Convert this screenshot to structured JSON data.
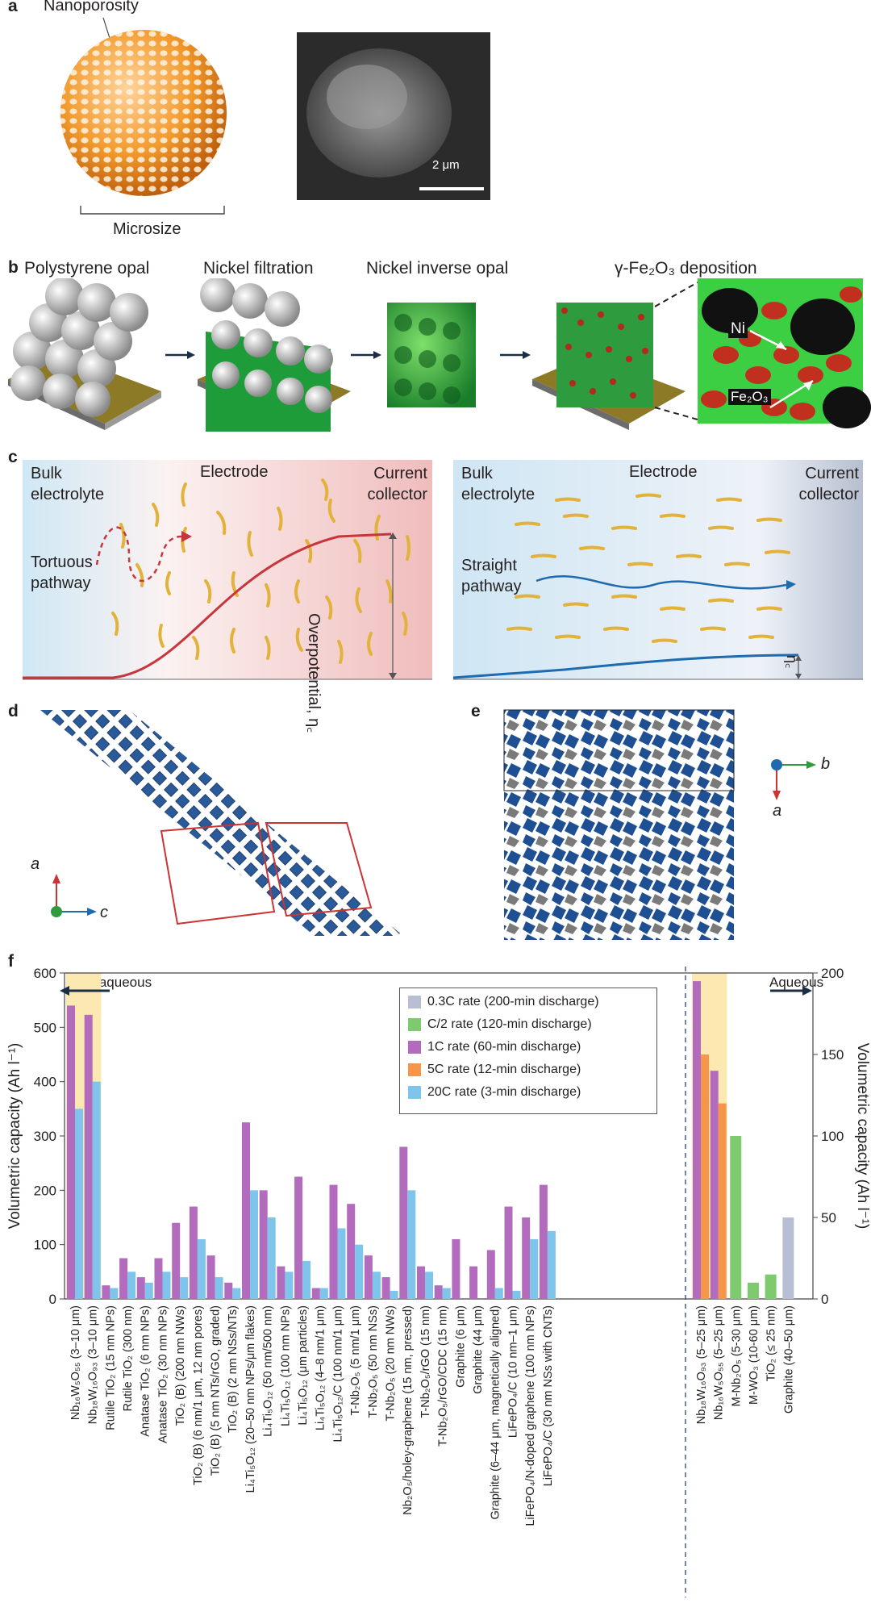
{
  "panels": {
    "a": {
      "letter": "a",
      "nano_label": "Nanoporosity",
      "micro_label": "Microsize",
      "scale_bar": "2 μm"
    },
    "b": {
      "letter": "b",
      "steps": [
        "Polystyrene opal",
        "Nickel filtration",
        "Nickel inverse opal",
        "γ-Fe₂O₃ deposition"
      ],
      "zoom_labels": [
        "Ni",
        "Fe₂O₃"
      ]
    },
    "c": {
      "letter": "c",
      "left": {
        "bulk": "Bulk electrolyte",
        "electrode": "Electrode",
        "collector": "Current collector",
        "pathway": "Tortuous pathway",
        "overpotential": "Overpotential, η꜀"
      },
      "right": {
        "bulk": "Bulk electrolyte",
        "electrode": "Electrode",
        "collector": "Current collector",
        "pathway": "Straight pathway",
        "overpotential": "η꜀"
      }
    },
    "d": {
      "letter": "d",
      "axis_a": "a",
      "axis_c": "c"
    },
    "e": {
      "letter": "e",
      "axis_b": "b",
      "axis_a": "a"
    },
    "f": {
      "letter": "f",
      "non_aqueous": "Non-aqueous",
      "aqueous": "Aqueous"
    }
  },
  "colors": {
    "c03": "#b9bfd3",
    "c2": "#7dcb6e",
    "c1": "#b36bbd",
    "c5": "#f7954a",
    "c20": "#7fc4ea",
    "highlight": "#fce9b1",
    "red_curve": "#c8363b",
    "blue_curve": "#1f6bb0",
    "octa_blue": "#1f4f93",
    "octa_grey": "#7a7a7a"
  },
  "chart_data": {
    "type": "bar",
    "title": "",
    "ylabel": "Volumetric capacity (Ah l⁻¹)",
    "ylabel_right": "Volumetric capacity (Ah l⁻¹)",
    "ylim": [
      0,
      600
    ],
    "ylim_right": [
      0,
      200
    ],
    "yticks": [
      "0",
      "100",
      "200",
      "300",
      "400",
      "500",
      "600"
    ],
    "yticks_right": [
      "0",
      "50",
      "100",
      "150",
      "200"
    ],
    "legend": [
      {
        "key": "c03",
        "label": "0.3C rate (200-min discharge)"
      },
      {
        "key": "c2",
        "label": "C/2 rate (120-min discharge)"
      },
      {
        "key": "c1",
        "label": "1C rate (60-min discharge)"
      },
      {
        "key": "c5",
        "label": "5C rate (12-min discharge)"
      },
      {
        "key": "c20",
        "label": "20C rate (3-min discharge)"
      }
    ],
    "categories_left": [
      {
        "label": "Nb₁₆W₅O₅₅ (3–10 μm)",
        "c1": 540,
        "c20": 350,
        "hl": true
      },
      {
        "label": "Nb₁₈W₁₆O₉₃ (3–10 μm)",
        "c1": 523,
        "c20": 400,
        "hl": true
      },
      {
        "label": "Rutile TiO₂ (15 nm NPs)",
        "c1": 25,
        "c20": 20
      },
      {
        "label": "Rutile TiO₂ (300 nm)",
        "c1": 75,
        "c20": 50
      },
      {
        "label": "Anatase TiO₂ (6 nm NPs)",
        "c1": 40,
        "c20": 30
      },
      {
        "label": "Anatase TiO₂ (30 nm NPs)",
        "c1": 75,
        "c20": 50
      },
      {
        "label": "TiO₂ (B) (200 nm NWs)",
        "c1": 140,
        "c20": 40
      },
      {
        "label": "TiO₂ (B) (6 nm/1 μm, 12 nm pores)",
        "c1": 170,
        "c20": 110
      },
      {
        "label": "TiO₂ (B) (5 nm NTs/rGO, graded)",
        "c1": 80,
        "c20": 40
      },
      {
        "label": "TiO₂ (B) (2 nm NSs/NTs)",
        "c1": 30,
        "c20": 20
      },
      {
        "label": "Li₄Ti₅O₁₂ (20–50 nm NPs/μm flakes)",
        "c1": 325,
        "c20": 200
      },
      {
        "label": "Li₄Ti₅O₁₂ (50 nm/500 nm)",
        "c1": 200,
        "c20": 150
      },
      {
        "label": "Li₄Ti₅O₁₂ (100 nm NPs)",
        "c1": 60,
        "c20": 50
      },
      {
        "label": "Li₄Ti₅O₁₂ (μm particles)",
        "c1": 225,
        "c20": 70
      },
      {
        "label": "Li₄Ti₅O₁₂ (4–8 nm/1 μm)",
        "c1": 20,
        "c20": 20
      },
      {
        "label": "Li₄Ti₅O₁₂/C (100 nm/1 μm)",
        "c1": 210,
        "c20": 130
      },
      {
        "label": "T-Nb₂O₅ (5 nm/1 μm)",
        "c1": 175,
        "c20": 100
      },
      {
        "label": "T-Nb₂O₅ (50 nm NSs)",
        "c1": 80,
        "c20": 50
      },
      {
        "label": "T-Nb₂O₅ (20 nm NWs)",
        "c1": 40,
        "c20": 15
      },
      {
        "label": "Nb₂O₅/holey-graphene (15 nm, pressed)",
        "c1": 280,
        "c20": 200
      },
      {
        "label": "T-Nb₂O₅/rGO (15 nm)",
        "c1": 60,
        "c20": 50
      },
      {
        "label": "T-Nb₂O₅/rGO/CDC (15 nm)",
        "c1": 25,
        "c20": 20
      },
      {
        "label": "Graphite (6 μm)",
        "c1": 110,
        "c20": 0
      },
      {
        "label": "Graphite (44 μm)",
        "c1": 60,
        "c20": 0
      },
      {
        "label": "Graphite (6–44 μm, magnetically aligned)",
        "c1": 90,
        "c20": 20
      },
      {
        "label": "LiFePO₄/C (10 nm–1 μm)",
        "c1": 170,
        "c20": 15
      },
      {
        "label": "LiFePO₄/N-doped graphene (100 nm NPs)",
        "c1": 150,
        "c20": 110
      },
      {
        "label": "LiFePO₄/C (30 nm NSs with CNTs)",
        "c1": 210,
        "c20": 125
      }
    ],
    "categories_right": [
      {
        "label": "Nb₁₈W₁₆O₉₃ (5–25 μm)",
        "c1": 195,
        "c5": 150,
        "hl": true
      },
      {
        "label": "Nb₁₆W₅O₅₅ (5–25 μm)",
        "c1": 140,
        "c5": 120,
        "hl": true
      },
      {
        "label": "M-Nb₂O₅ (5-30 μm)",
        "c2": 100
      },
      {
        "label": "M-WO₃ (10-60 μm)",
        "c2": 10
      },
      {
        "label": "TiO₂ (≤ 25 nm)",
        "c2": 15
      },
      {
        "label": "Graphite (40–50 μm)",
        "c03": 50
      }
    ]
  }
}
